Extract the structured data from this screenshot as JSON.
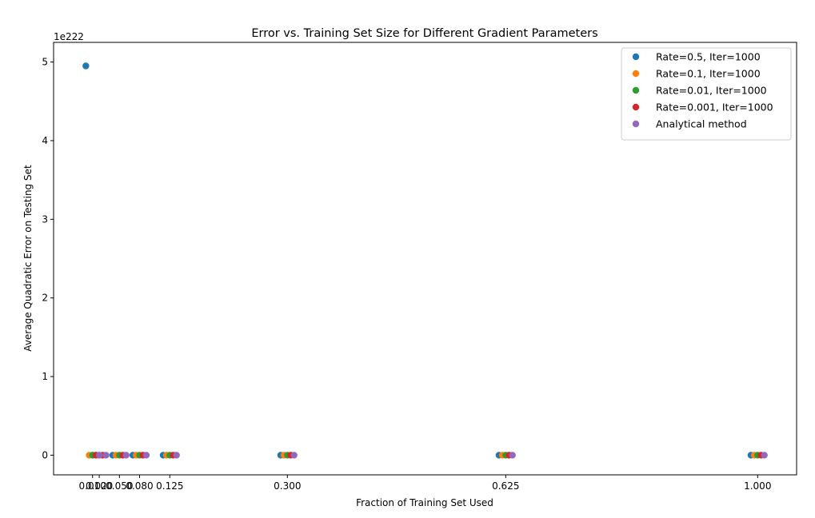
{
  "chart_data": {
    "type": "scatter",
    "title": "Error vs. Training Set Size for Different Gradient Parameters",
    "xlabel": "Fraction of Training Set Used",
    "ylabel": "Average Quadratic Error on Testing Set",
    "y_offset_text": "1e222",
    "xlim": [
      -0.048,
      1.058
    ],
    "ylim": [
      -0.25,
      5.25
    ],
    "y_scale_factor": "1e222",
    "x_ticks": [
      0.01,
      0.02,
      0.05,
      0.08,
      0.125,
      0.3,
      0.625,
      1.0
    ],
    "x_tick_labels": [
      "0.010",
      "0.020",
      "0.050",
      "0.080",
      "0.125",
      "0.300",
      "0.625",
      "1.000"
    ],
    "y_ticks": [
      0,
      1,
      2,
      3,
      4,
      5
    ],
    "y_tick_labels": [
      "0",
      "1",
      "2",
      "3",
      "4",
      "5"
    ],
    "legend_position": "top-right",
    "grid": false,
    "series": [
      {
        "name": "Rate=0.5, Iter=1000",
        "color": "#1f77b4",
        "x": [
          0.0,
          0.01,
          0.04,
          0.07,
          0.115,
          0.29,
          0.615,
          0.99
        ],
        "y": [
          4.95,
          0,
          0,
          0,
          0,
          0,
          0,
          0
        ]
      },
      {
        "name": "Rate=0.1, Iter=1000",
        "color": "#ff7f0e",
        "x": [
          0.005,
          0.015,
          0.045,
          0.075,
          0.12,
          0.295,
          0.62,
          0.995
        ],
        "y": [
          0,
          0,
          0,
          0,
          0,
          0,
          0,
          0
        ]
      },
      {
        "name": "Rate=0.01, Iter=1000",
        "color": "#2ca02c",
        "x": [
          0.01,
          0.02,
          0.05,
          0.08,
          0.125,
          0.3,
          0.625,
          1.0
        ],
        "y": [
          0,
          0,
          0,
          0,
          0,
          0,
          0,
          0
        ]
      },
      {
        "name": "Rate=0.001, Iter=1000",
        "color": "#d62728",
        "x": [
          0.015,
          0.025,
          0.055,
          0.085,
          0.13,
          0.305,
          0.63,
          1.005
        ],
        "y": [
          0,
          0,
          0,
          0,
          0,
          0,
          0,
          0
        ]
      },
      {
        "name": "Analytical method",
        "color": "#9467bd",
        "x": [
          0.02,
          0.03,
          0.06,
          0.09,
          0.135,
          0.31,
          0.635,
          1.01
        ],
        "y": [
          0,
          0,
          0,
          0,
          0,
          0,
          0,
          0
        ]
      }
    ]
  }
}
